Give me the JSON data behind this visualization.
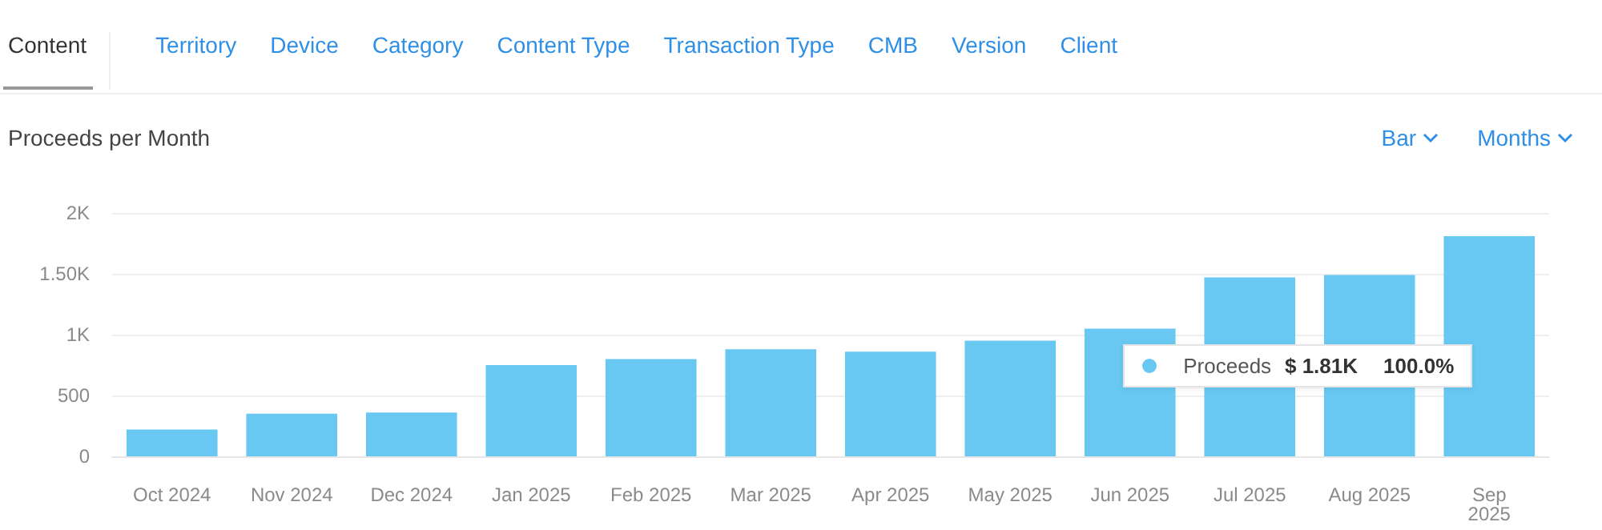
{
  "chart_data": {
    "type": "bar",
    "title": "Proceeds per Month",
    "categories": [
      "Oct 2024",
      "Nov 2024",
      "Dec 2024",
      "Jan 2025",
      "Feb 2025",
      "Mar 2025",
      "Apr 2025",
      "May 2025",
      "Jun 2025",
      "Jul 2025",
      "Aug 2025",
      "Sep 2025"
    ],
    "series": [
      {
        "name": "Proceeds",
        "color": "#68c8f2",
        "values": [
          220,
          350,
          360,
          750,
          800,
          880,
          860,
          950,
          1050,
          1470,
          1490,
          1810
        ]
      }
    ],
    "ylim": [
      0,
      2000
    ],
    "yticks": [
      0,
      500,
      {
        "value": 1000,
        "label": "1K"
      },
      {
        "value": 1500,
        "label": "1.50K"
      },
      {
        "value": 2000,
        "label": "2K"
      }
    ],
    "grid": "y",
    "legend": "right",
    "annotations": [
      "Content",
      "Territory",
      "Device",
      "Category",
      "Content Type",
      "Transaction Type",
      "CMB",
      "Version",
      "Client",
      "Bar",
      "Months",
      "$ 1.81K",
      "100.0%"
    ]
  }
}
